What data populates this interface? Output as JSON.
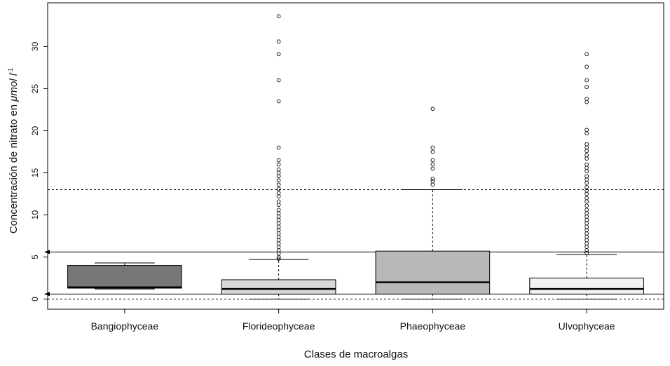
{
  "chart_data": {
    "type": "boxplot",
    "xlabel": "Clases de macroalgas",
    "ylabel_main": "Concentración de nitrato en ",
    "ylabel_unit": "μmol l",
    "ylabel_exp": "-1",
    "ylim": [
      -1.2,
      35.2
    ],
    "yticks": [
      0,
      5,
      10,
      15,
      20,
      25,
      30
    ],
    "colors": {
      "axis": "#000000",
      "Bangiophyceae": "#777777",
      "Florideophyceae": "#d9d9d9",
      "Phaeophyceae": "#b8b8b8",
      "Ulvophyceae": "#f2f2f2"
    },
    "reference_lines": [
      {
        "y": 13.0,
        "style": "dashed"
      },
      {
        "y": 5.6,
        "style": "solid",
        "arrow": true
      },
      {
        "y": 0.6,
        "style": "solid",
        "arrow": true
      },
      {
        "y": 0.0,
        "style": "dashed"
      }
    ],
    "boxes": [
      {
        "name": "Bangiophyceae",
        "whisker_low": 1.2,
        "q1": 1.3,
        "median": 1.4,
        "q3": 4.0,
        "whisker_high": 4.3,
        "outliers": []
      },
      {
        "name": "Florideophyceae",
        "whisker_low": 0.0,
        "q1": 0.6,
        "median": 1.2,
        "q3": 2.3,
        "whisker_high": 4.7,
        "outliers": [
          33.6,
          30.6,
          29.1,
          26.0,
          23.5,
          18.0,
          16.5,
          16.0,
          15.4,
          15.0,
          14.6,
          14.1,
          13.6,
          13.1,
          12.6,
          12.2,
          11.6,
          11.2,
          10.6,
          10.2,
          9.8,
          9.4,
          9.0,
          8.6,
          8.2,
          7.8,
          7.4,
          7.0,
          6.6,
          6.2,
          5.8,
          5.4,
          5.0,
          4.8
        ]
      },
      {
        "name": "Phaeophyceae",
        "whisker_low": 0.0,
        "q1": 0.6,
        "median": 2.0,
        "q3": 5.7,
        "whisker_high": 13.0,
        "outliers": [
          22.6,
          18.0,
          17.5,
          16.5,
          16.0,
          15.5,
          14.3,
          14.0,
          13.6
        ]
      },
      {
        "name": "Ulvophyceae",
        "whisker_low": 0.0,
        "q1": 0.6,
        "median": 1.2,
        "q3": 2.5,
        "whisker_high": 5.3,
        "outliers": [
          29.1,
          27.6,
          26.0,
          25.2,
          23.8,
          23.4,
          20.1,
          19.7,
          18.4,
          18.0,
          17.6,
          17.1,
          16.7,
          16.0,
          15.6,
          15.2,
          14.6,
          14.2,
          13.8,
          13.3,
          12.9,
          12.5,
          12.0,
          11.6,
          11.1,
          10.6,
          10.2,
          9.8,
          9.4,
          9.0,
          8.6,
          8.2,
          7.8,
          7.4,
          7.0,
          6.6,
          6.2,
          5.8,
          5.5
        ]
      }
    ]
  }
}
